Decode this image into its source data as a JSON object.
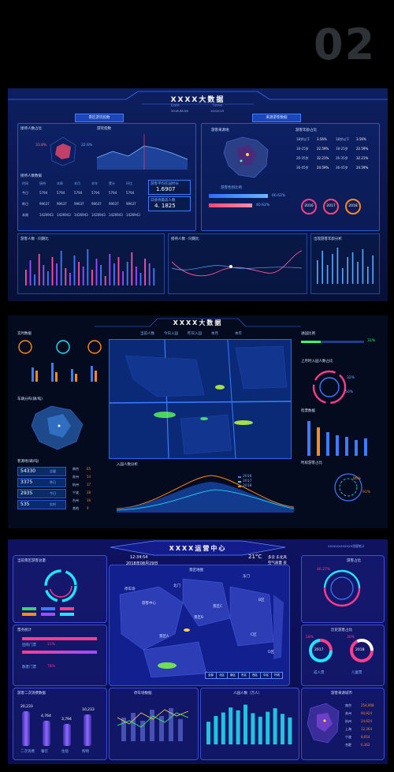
{
  "page_number": "02",
  "dash1": {
    "title": "XXXX大数据",
    "subtitle_date": "Date",
    "subtitle_times": "Times",
    "date_value": "2018.08.08",
    "time_value": "10:02:23",
    "left_tab": "景区游玩指数",
    "right_tab": "来源游客数据",
    "panel_receive_ratio": "接待人数占比",
    "panel_tour_index": "游玩指数",
    "panel_receive_data": "接待人数数据",
    "panel_source_place": "游客来源地",
    "panel_age_ratio": "游客年龄占比",
    "panel_trend": "游客人数 · 同期比",
    "panel_receive_trend": "接待人数 · 同期比",
    "panel_bottom_right": "出现游客年龄分析",
    "kpi_avg_label": "游客平均在园时长",
    "kpi_avg_value": "1.6907",
    "kpi_receive_label": "日接待最高人数",
    "kpi_receive_value": "4. 1825",
    "pct_a": "33.8%",
    "pct_b": "22.6%",
    "source_label": "游客性别比例",
    "bar_pct_1": "60.62%",
    "bar_pct_2": "40.62%",
    "ring_years": [
      "2016",
      "2017",
      "2018"
    ],
    "legend_years": [
      "2016",
      "2017",
      "2018"
    ],
    "age_rows": [
      {
        "label": "18岁以下",
        "pct": "3.56%"
      },
      {
        "label": "18-25岁",
        "pct": "22.59%"
      },
      {
        "label": "26-35岁",
        "pct": "32.21%"
      },
      {
        "label": "36-45岁",
        "pct": "24.59%"
      }
    ],
    "table_header": [
      "时间",
      "接待",
      "本周",
      "本月",
      "本年",
      "累计",
      "环比"
    ],
    "table_rows": [
      [
        "今日",
        "5794",
        "5794",
        "5794",
        "5794",
        "5794",
        "5794"
      ],
      [
        "昨日",
        "99637",
        "99637",
        "99637",
        "99637",
        "99637",
        "99637"
      ],
      [
        "本周",
        "1426943",
        "1426943",
        "1426943",
        "1426943",
        "1426943",
        "1426943"
      ]
    ]
  },
  "dash2": {
    "title": "XXXX大数据",
    "panel_realtime": "实时数据",
    "panel_map": "车辆分布(辆/吨)",
    "panel_source": "客源地(辆/吨)",
    "panel_heat": "入园人数分析",
    "panel_ratio": "进园比例",
    "panel_month": "上月时入园人数占比",
    "panel_ticket": "检票数据",
    "panel_time": "时段游客占比",
    "filters": [
      "当前人数",
      "今日入园",
      "昨日入园",
      "本月",
      "本年"
    ],
    "stats": [
      {
        "value": "54330",
        "unit": "总量"
      },
      {
        "value": "3375",
        "unit": "昨日"
      },
      {
        "value": "2935",
        "unit": "今日"
      },
      {
        "value": "535",
        "unit": "实时"
      }
    ],
    "side_labels": [
      "南京",
      "苏州",
      "杭州",
      "宁波",
      "台州",
      "其他"
    ],
    "side_values": [
      "65",
      "54",
      "37",
      "28",
      "16",
      "9"
    ],
    "ratio_pct": "31%",
    "ring_pct_1": "32%",
    "ring_pct_2": "50%",
    "ring_pct_3": "86%",
    "ring_pct_4": "91%",
    "heat_legend": [
      "2016",
      "2017",
      "2018"
    ]
  },
  "dash3": {
    "title": "XXXX运营中心",
    "date": "2018年08月29日",
    "time": "12:34:54",
    "weather_temp": "21°C",
    "weather_desc": "多云 东北风",
    "weather_aqi": "空气质量 良",
    "top_right_label": "XXXXXXXXXXXX游客统计",
    "panel_visitors": "当前景区游客总量",
    "panel_tickets": "票务统计",
    "panel_revenue": "营业收入",
    "panel_map": "景区地图",
    "panel_ratio": "游客占比",
    "panel_history": "历史游客占比",
    "panel_parking": "停车场数据",
    "panel_age": "人园人数（万人）",
    "panel_source": "游客来源城市",
    "panel_forecast": "游客二次消费数据",
    "ticket_pct_1": "21%",
    "ticket_pct_2": "78%",
    "ticket_labels": [
      "团购门票",
      "散客门票"
    ],
    "ring_pct": "46.27%",
    "donut_years": [
      "2017",
      "2018"
    ],
    "donut_pct": [
      "18%",
      "30%"
    ],
    "legend_pair": [
      "成人票",
      "儿童票"
    ],
    "bar_values": [
      "20,233",
      "4,764",
      "3,794",
      "10,233"
    ],
    "bar_labels": [
      "二次消费",
      "餐饮",
      "住宿",
      "购物"
    ],
    "map_places": [
      "停车场",
      "游客中心",
      "北门",
      "景区A",
      "东门",
      "景区B",
      "景区C",
      "B区",
      "C区",
      "D区"
    ],
    "map_tabs": [
      "全部",
      "北区",
      "南区",
      "东区",
      "西区",
      "中区",
      "环线"
    ],
    "source_list": [
      {
        "city": "南京",
        "val": "254,908"
      },
      {
        "city": "苏州",
        "val": "94,924"
      },
      {
        "city": "杭州",
        "val": "24,624"
      },
      {
        "city": "上海",
        "val": "12,364"
      },
      {
        "city": "宁波",
        "val": "8,654"
      },
      {
        "city": "合肥",
        "val": "6,362"
      }
    ],
    "age_values": [
      "3.2",
      "4.0",
      "4.5",
      "5.2",
      "4.8",
      "5.6",
      "4.4",
      "3.9",
      "4.6",
      "5.1",
      "4.3",
      "3.8"
    ]
  },
  "colors": {
    "accent": "#3d7bff",
    "pink": "#ff3d8b",
    "orange": "#ff8a1f",
    "cyan": "#1de7ff",
    "green": "#37ff6f",
    "purple": "#9b4dff"
  }
}
